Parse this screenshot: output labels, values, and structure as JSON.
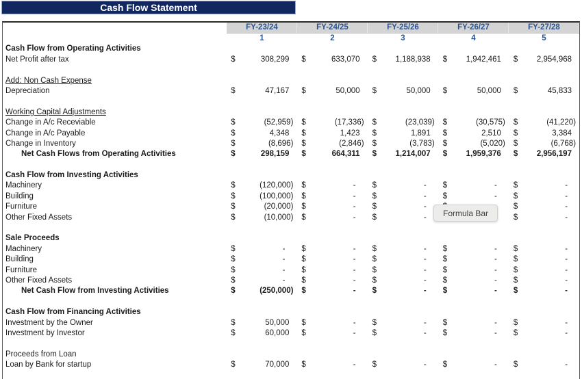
{
  "banner": {
    "title": "Cash Flow Statement"
  },
  "tooltip": {
    "text": "Formula Bar"
  },
  "colors": {
    "banner_bg": "#12265F",
    "banner_fg": "#FFFFFF",
    "header_bg": "#D4D4D4",
    "accent_blue": "#2B5390"
  },
  "table": {
    "currency_symbol": "$",
    "columns": [
      {
        "header": "FY-23/24",
        "index": "1"
      },
      {
        "header": "FY-24/25",
        "index": "2"
      },
      {
        "header": "FY-25/26",
        "index": "3"
      },
      {
        "header": "FY-26/27",
        "index": "4"
      },
      {
        "header": "FY-27/28",
        "index": "5"
      }
    ],
    "rows": [
      {
        "label": "Cash Flow from Operating Activities",
        "style": "section"
      },
      {
        "label": "Net Profit after tax",
        "style": "item",
        "values": [
          "308,299",
          "633,070",
          "1,188,938",
          "1,942,461",
          "2,954,968"
        ]
      },
      {
        "style": "blank"
      },
      {
        "label": "Add: Non Cash Expense",
        "style": "underline"
      },
      {
        "label": "Depreciation",
        "style": "item",
        "values": [
          "47,167",
          "50,000",
          "50,000",
          "50,000",
          "45,833"
        ]
      },
      {
        "style": "blank"
      },
      {
        "label": "Working Capital Adjustments",
        "style": "underline"
      },
      {
        "label": "Change in A/c Receviable",
        "style": "item",
        "values": [
          "(52,959)",
          "(17,336)",
          "(23,039)",
          "(30,575)",
          "(41,220)"
        ]
      },
      {
        "label": "Change in A/c Payable",
        "style": "item",
        "values": [
          "4,348",
          "1,423",
          "1,891",
          "2,510",
          "3,384"
        ]
      },
      {
        "label": "Change in Inventory",
        "style": "item",
        "values": [
          "(8,696)",
          "(2,846)",
          "(3,783)",
          "(5,020)",
          "(6,768)"
        ]
      },
      {
        "label": "Net Cash Flows from Operating Activities",
        "style": "total",
        "values": [
          "298,159",
          "664,311",
          "1,214,007",
          "1,959,376",
          "2,956,197"
        ]
      },
      {
        "style": "blank"
      },
      {
        "label": "Cash Flow from Investing Activities",
        "style": "section"
      },
      {
        "label": "Machinery",
        "style": "item",
        "values": [
          "(120,000)",
          "-",
          "-",
          "-",
          "-"
        ]
      },
      {
        "label": "Building",
        "style": "item",
        "values": [
          "(100,000)",
          "-",
          "-",
          "-",
          "-"
        ]
      },
      {
        "label": "Furniture",
        "style": "item",
        "values": [
          "(20,000)",
          "-",
          "-",
          "-",
          "-"
        ]
      },
      {
        "label": "Other Fixed Assets",
        "style": "item",
        "values": [
          "(10,000)",
          "-",
          "-",
          "-",
          "-"
        ]
      },
      {
        "style": "blank"
      },
      {
        "label": "Sale Proceeds",
        "style": "section"
      },
      {
        "label": "Machinery",
        "style": "item",
        "values": [
          "-",
          "-",
          "-",
          "-",
          "-"
        ]
      },
      {
        "label": "Building",
        "style": "item",
        "values": [
          "-",
          "-",
          "-",
          "-",
          "-"
        ]
      },
      {
        "label": "Furniture",
        "style": "item",
        "values": [
          "-",
          "-",
          "-",
          "-",
          "-"
        ]
      },
      {
        "label": "Other Fixed Assets",
        "style": "item",
        "values": [
          "-",
          "-",
          "-",
          "-",
          "-"
        ]
      },
      {
        "label": "Net Cash Flow from Investing Activities",
        "style": "total",
        "values": [
          "(250,000)",
          "-",
          "-",
          "-",
          "-"
        ]
      },
      {
        "style": "blank"
      },
      {
        "label": "Cash Flow from Financing Activities",
        "style": "section"
      },
      {
        "label": "Investment by the Owner",
        "style": "item",
        "values": [
          "50,000",
          "-",
          "-",
          "-",
          "-"
        ]
      },
      {
        "label": "Investment by Investor",
        "style": "item",
        "values": [
          "60,000",
          "-",
          "-",
          "-",
          "-"
        ]
      },
      {
        "style": "blank"
      },
      {
        "label": "Proceeds from Loan",
        "style": "item"
      },
      {
        "label": "Loan by Bank for startup",
        "style": "item",
        "values": [
          "70,000",
          "-",
          "-",
          "-",
          "-"
        ]
      }
    ]
  }
}
